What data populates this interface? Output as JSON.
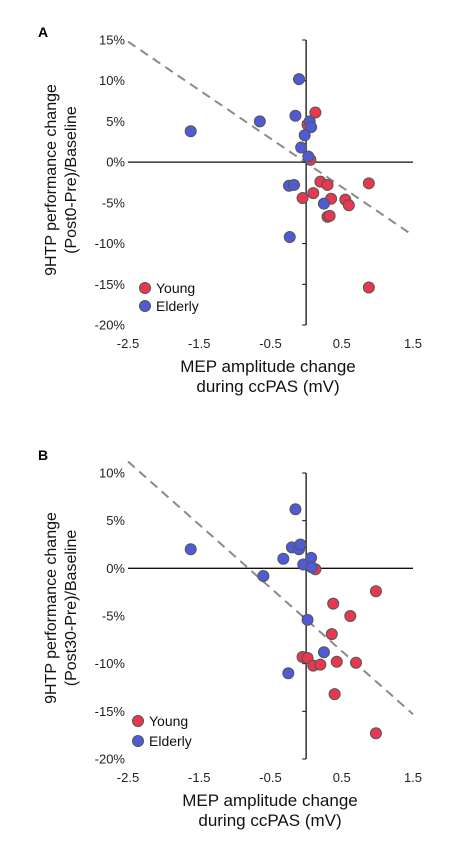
{
  "chart_data": [
    {
      "type": "scatter",
      "panel_label": "A",
      "ylabel_line1": "9HTP performance change",
      "ylabel_line2": "(Post0-Pre)/Baseline",
      "xlabel_line1": "MEP amplitude change",
      "xlabel_line2": "during ccPAS (mV)",
      "xlim": [
        -2.5,
        1.5
      ],
      "ylim": [
        -20,
        15
      ],
      "x_ticks": [
        -2.5,
        -1.5,
        -0.5,
        0.5,
        1.5
      ],
      "x_tick_labels": [
        "-2.5",
        "-1.5",
        "-0.5",
        "0.5",
        "1.5"
      ],
      "y_ticks": [
        15,
        10,
        5,
        0,
        -5,
        -10,
        -15,
        -20
      ],
      "y_tick_labels": [
        "15%",
        "10%",
        "5%",
        "0%",
        "-5%",
        "-10%",
        "-15%",
        "-20%"
      ],
      "legend": {
        "position": "bottom-left"
      },
      "trendline": {
        "style": "dashed",
        "color": "#8a8a8a",
        "x": [
          -2.5,
          1.5
        ],
        "y": [
          14.8,
          -9.0
        ]
      },
      "series": [
        {
          "name": "Young",
          "color": "#e8384f",
          "points": [
            {
              "x": 0.13,
              "y": 6.1
            },
            {
              "x": 0.02,
              "y": 4.6
            },
            {
              "x": 0.06,
              "y": 0.3
            },
            {
              "x": -0.05,
              "y": -4.4
            },
            {
              "x": 0.1,
              "y": -3.8
            },
            {
              "x": 0.2,
              "y": -2.4
            },
            {
              "x": 0.3,
              "y": -2.8
            },
            {
              "x": 0.35,
              "y": -4.5
            },
            {
              "x": 0.3,
              "y": -6.7
            },
            {
              "x": 0.33,
              "y": -6.6
            },
            {
              "x": 0.55,
              "y": -4.6
            },
            {
              "x": 0.6,
              "y": -5.3
            },
            {
              "x": 0.88,
              "y": -2.6
            },
            {
              "x": 0.88,
              "y": -15.4
            }
          ]
        },
        {
          "name": "Elderly",
          "color": "#4f5bd5",
          "points": [
            {
              "x": -1.62,
              "y": 3.8
            },
            {
              "x": -0.65,
              "y": 5.0
            },
            {
              "x": -0.1,
              "y": 10.2
            },
            {
              "x": -0.15,
              "y": 5.7
            },
            {
              "x": 0.05,
              "y": 5.0
            },
            {
              "x": 0.07,
              "y": 4.3
            },
            {
              "x": -0.02,
              "y": 3.3
            },
            {
              "x": -0.07,
              "y": 1.8
            },
            {
              "x": 0.03,
              "y": 0.7
            },
            {
              "x": -0.24,
              "y": -2.9
            },
            {
              "x": -0.17,
              "y": -2.8
            },
            {
              "x": 0.25,
              "y": -5.1
            },
            {
              "x": -0.23,
              "y": -9.2
            }
          ]
        }
      ]
    },
    {
      "type": "scatter",
      "panel_label": "B",
      "ylabel_line1": "9HTP performance change",
      "ylabel_line2": "(Post30-Pre)/Baseline",
      "xlabel_line1": "MEP amplitude change",
      "xlabel_line2": "during ccPAS (mV)",
      "xlim": [
        -2.5,
        1.5
      ],
      "ylim": [
        -20,
        10
      ],
      "x_ticks": [
        -2.5,
        -1.5,
        -0.5,
        0.5,
        1.5
      ],
      "x_tick_labels": [
        "-2.5",
        "-1.5",
        "-0.5",
        "0.5",
        "1.5"
      ],
      "y_ticks": [
        10,
        5,
        0,
        -5,
        -10,
        -15,
        -20
      ],
      "y_tick_labels": [
        "10%",
        "5%",
        "0%",
        "-5%",
        "-10%",
        "-15%",
        "-20%"
      ],
      "legend": {
        "position": "bottom-left"
      },
      "trendline": {
        "style": "dashed",
        "color": "#8a8a8a",
        "x": [
          -2.5,
          1.5
        ],
        "y": [
          11.2,
          -15.3
        ]
      },
      "series": [
        {
          "name": "Young",
          "color": "#e8384f",
          "points": [
            {
              "x": 0.13,
              "y": -0.1
            },
            {
              "x": -0.05,
              "y": -9.3
            },
            {
              "x": 0.02,
              "y": -9.4
            },
            {
              "x": 0.1,
              "y": -10.2
            },
            {
              "x": 0.2,
              "y": -10.1
            },
            {
              "x": 0.38,
              "y": -3.7
            },
            {
              "x": 0.36,
              "y": -6.9
            },
            {
              "x": 0.43,
              "y": -9.8
            },
            {
              "x": 0.4,
              "y": -13.2
            },
            {
              "x": 0.62,
              "y": -5.0
            },
            {
              "x": 0.7,
              "y": -9.9
            },
            {
              "x": 0.98,
              "y": -2.4
            },
            {
              "x": 0.98,
              "y": -17.3
            }
          ]
        },
        {
          "name": "Elderly",
          "color": "#4f5bd5",
          "points": [
            {
              "x": -1.62,
              "y": 2.0
            },
            {
              "x": -0.6,
              "y": -0.8
            },
            {
              "x": -0.32,
              "y": 1.0
            },
            {
              "x": -0.2,
              "y": 2.2
            },
            {
              "x": -0.15,
              "y": 6.2
            },
            {
              "x": -0.1,
              "y": 2.0
            },
            {
              "x": -0.08,
              "y": 2.5
            },
            {
              "x": -0.04,
              "y": 0.4
            },
            {
              "x": 0.07,
              "y": 1.1
            },
            {
              "x": 0.08,
              "y": 0.1
            },
            {
              "x": 0.02,
              "y": -5.4
            },
            {
              "x": 0.25,
              "y": -8.8
            },
            {
              "x": -0.25,
              "y": -11.0
            }
          ]
        }
      ]
    }
  ]
}
